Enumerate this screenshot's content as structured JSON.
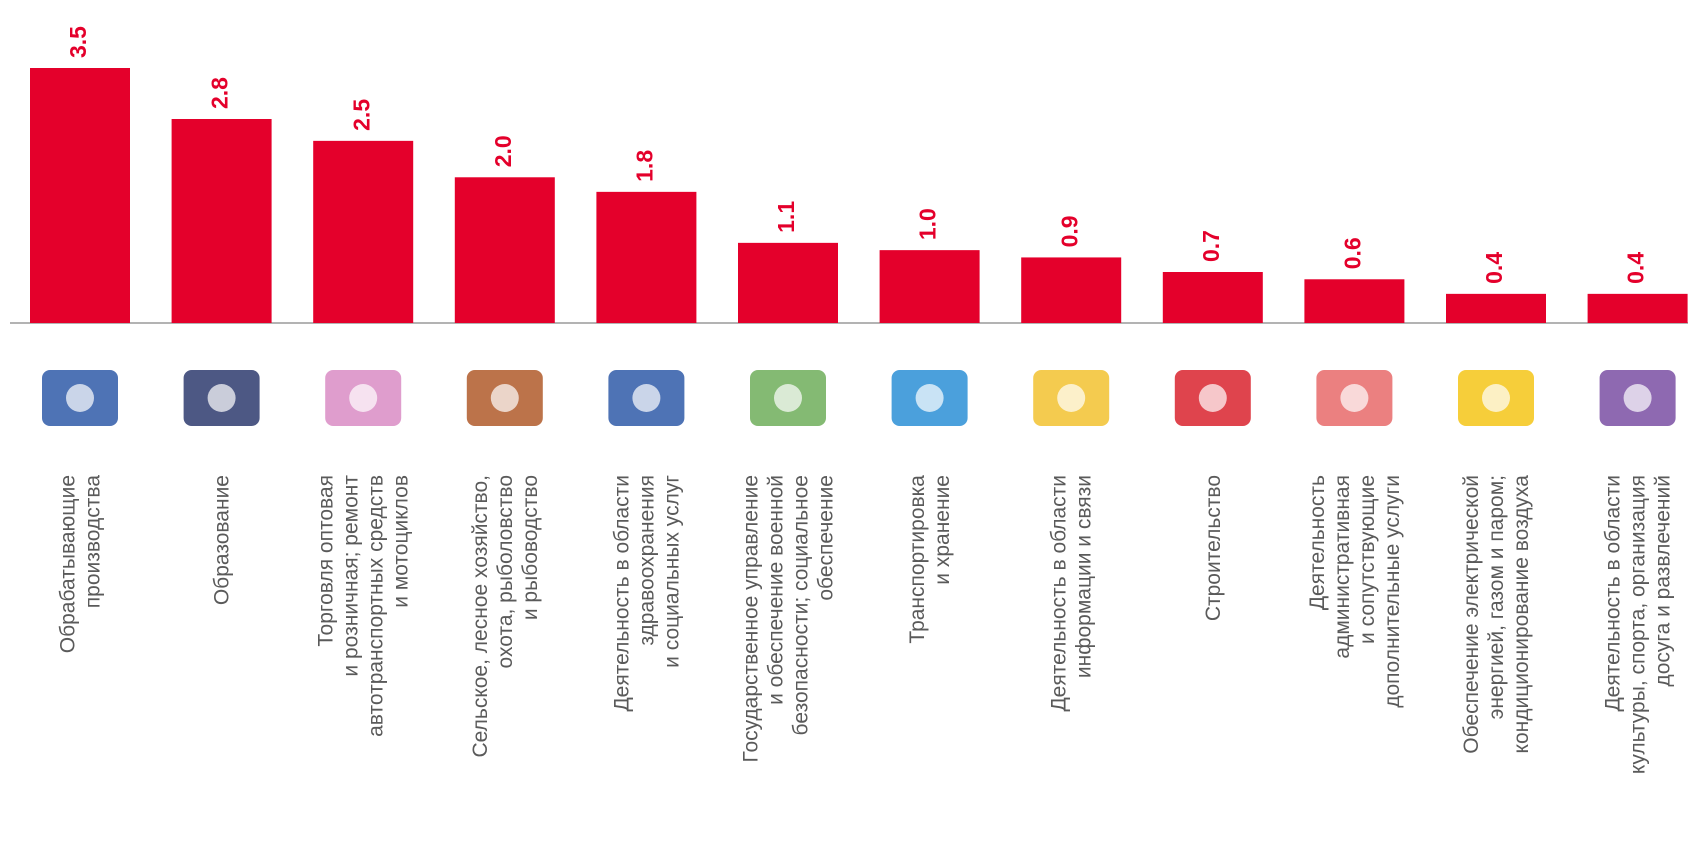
{
  "chart_data": {
    "type": "bar",
    "color": "#e4002b",
    "categories": [
      [
        "Обрабатывающие",
        "производства"
      ],
      [
        "Образование"
      ],
      [
        "Торговля оптовая",
        "и розничная; ремонт",
        "автотранспортных средств",
        "и мотоциклов"
      ],
      [
        "Сельское, лесное хозяйство,",
        "охота, рыболовство",
        "и рыбоводство"
      ],
      [
        "Деятельность в области",
        "здравоохранения",
        "и социальных услуг"
      ],
      [
        "Государственное управление",
        "и обеспечение военной",
        "безопасности; социальное",
        "обеспечение"
      ],
      [
        "Транспортировка",
        "и хранение"
      ],
      [
        "Деятельность в области",
        "информации и связи"
      ],
      [
        "Строительство"
      ],
      [
        "Деятельность",
        "административная",
        "и сопутствующие",
        "дополнительные услуги"
      ],
      [
        "Обеспечение электрической",
        "энергией, газом и паром;",
        "кондиционирование воздуха"
      ],
      [
        "Деятельность в области",
        "культуры, спорта, организация",
        "досуга и развлечений"
      ]
    ],
    "values": [
      3.5,
      2.8,
      2.5,
      2.0,
      1.8,
      1.1,
      1.0,
      0.9,
      0.7,
      0.6,
      0.4,
      0.4
    ],
    "value_labels": [
      "3.5",
      "2.8",
      "2.5",
      "2.0",
      "1.8",
      "1.1",
      "1.0",
      "0.9",
      "0.7",
      "0.6",
      "0.4",
      "0.4"
    ]
  }
}
